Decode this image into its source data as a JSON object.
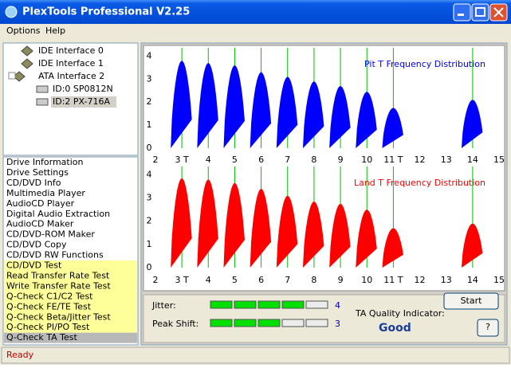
{
  "window": {
    "title": "PlexTools Professional V2.25"
  },
  "menu": [
    "Options",
    "Help"
  ],
  "tree": [
    "IDE Interface 0",
    "IDE Interface 1",
    "ATA Interface 2",
    "ID:0  SP0812N",
    "ID:2  PX-716A"
  ],
  "functions": [
    "Drive Information",
    "Drive Settings",
    "CD/DVD Info",
    "Multimedia Player",
    "AudioCD Player",
    "Digital Audio Extraction",
    "AudioCD Maker",
    "CD/DVD-ROM Maker",
    "CD/DVD Copy",
    "CD/DVD RW Functions",
    "CD/DVD Test",
    "Read Transfer Rate Test",
    "Write Transfer Rate Test",
    "Q-Check C1/C2 Test",
    "Q-Check FE/TE Test",
    "Q-Check Beta/Jitter Test",
    "Q-Check PI/PO Test",
    "Q-Check TA Test"
  ],
  "chart_data": [
    {
      "type": "area",
      "title": "Pit T Frequency Distribution",
      "color": "#0000ff",
      "reference_line_color": "#00c000",
      "x": [
        3,
        4,
        5,
        6,
        7,
        8,
        9,
        10,
        11,
        14
      ],
      "values": [
        3.8,
        3.7,
        3.6,
        3.3,
        3.1,
        2.9,
        2.7,
        2.45,
        1.75,
        2.1
      ],
      "xlim": [
        1.64,
        15.18
      ],
      "xticks": [
        2,
        {
          "value": 3,
          "label": "3 T"
        },
        4,
        5,
        6,
        7,
        8,
        9,
        10,
        {
          "value": 11,
          "label": "11 T"
        },
        12,
        13,
        14,
        15
      ],
      "ylim": [
        -0.24,
        4.36
      ],
      "yticks": [
        0,
        1,
        2,
        3,
        4
      ]
    },
    {
      "type": "area",
      "title": "Land T Frequency Distribution",
      "color": "#ff0000",
      "reference_line_color": "#00c000",
      "x": [
        3,
        4,
        5,
        6,
        7,
        8,
        9,
        10,
        11,
        14
      ],
      "values": [
        3.85,
        3.8,
        3.65,
        3.4,
        3.1,
        2.85,
        2.75,
        2.5,
        1.7,
        1.9
      ],
      "xlim": [
        1.64,
        15.18
      ],
      "xticks": [
        2,
        {
          "value": 3,
          "label": "3 T"
        },
        4,
        5,
        6,
        7,
        8,
        9,
        10,
        {
          "value": 11,
          "label": "11 T"
        },
        12,
        13,
        14,
        15
      ],
      "ylim": [
        -0.24,
        4.36
      ],
      "yticks": [
        0,
        1,
        2,
        3,
        4
      ]
    }
  ],
  "jitter": {
    "label": "Jitter:",
    "value": 4
  },
  "peak_shift": {
    "label": "Peak Shift:",
    "value": 3
  },
  "ta_quality": {
    "label": "TA Quality Indicator:",
    "value": "Good"
  },
  "buttons": [
    "Start",
    "?"
  ],
  "status": "Ready"
}
